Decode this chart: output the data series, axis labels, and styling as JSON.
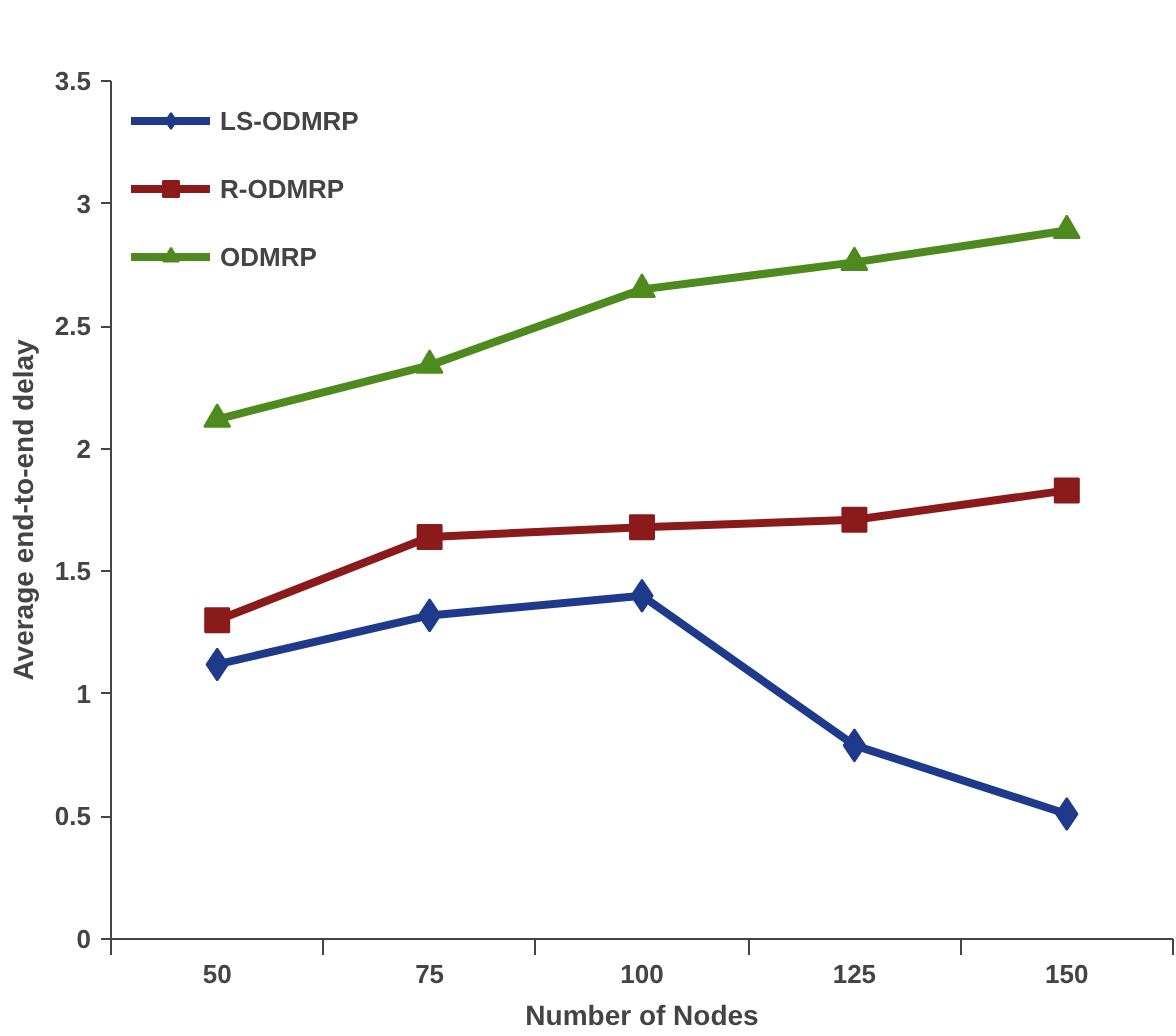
{
  "chart_data": {
    "type": "line",
    "xlabel": "Number of Nodes",
    "ylabel": "Average end-to-end delay",
    "categories": [
      "50",
      "75",
      "100",
      "125",
      "150"
    ],
    "series": [
      {
        "name": "LS-ODMRP",
        "color": "#1f3a8a",
        "marker": "diamond",
        "values": [
          1.12,
          1.32,
          1.4,
          0.79,
          0.51
        ]
      },
      {
        "name": "R-ODMRP",
        "color": "#8b1a1a",
        "marker": "square",
        "values": [
          1.3,
          1.64,
          1.68,
          1.71,
          1.83
        ]
      },
      {
        "name": "ODMRP",
        "color": "#4e8a1e",
        "marker": "triangle",
        "values": [
          2.12,
          2.34,
          2.65,
          2.76,
          2.89
        ]
      }
    ],
    "ylim": [
      0,
      3.5
    ],
    "yticks": [
      0,
      0.5,
      1,
      1.5,
      2,
      2.5,
      3,
      3.5
    ],
    "grid": false,
    "legend": "top left",
    "line_style": "solid"
  }
}
